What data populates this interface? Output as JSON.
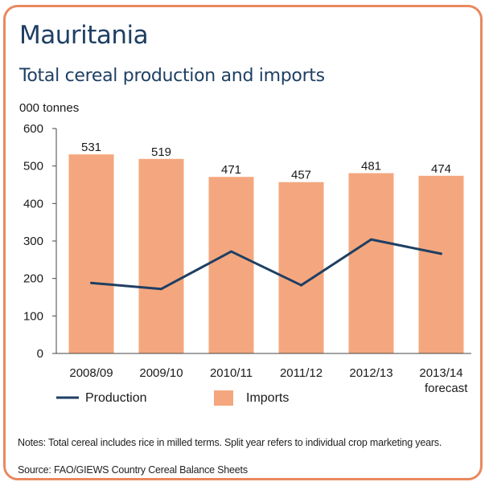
{
  "title": "Mauritania",
  "subtitle": "Total cereal production and imports",
  "unit_label": "000 tonnes",
  "notes": "Notes: Total cereal includes rice in milled terms. Split year refers to individual crop marketing years.",
  "source": "Source: FAO/GIEWS Country Cereal Balance Sheets",
  "forecast_label": "forecast",
  "colors": {
    "imports": "#f4a77e",
    "production": "#1f3f63",
    "border": "#e9895f"
  },
  "chart_data": {
    "type": "bar",
    "categories": [
      "2008/09",
      "2009/10",
      "2010/11",
      "2011/12",
      "2012/13",
      "2013/14"
    ],
    "series": [
      {
        "name": "Imports",
        "type": "bar",
        "values": [
          531,
          519,
          471,
          457,
          481,
          474
        ]
      },
      {
        "name": "Production",
        "type": "line",
        "values": [
          188,
          172,
          272,
          182,
          304,
          266
        ]
      }
    ],
    "data_labels": [
      "531",
      "519",
      "471",
      "457",
      "481",
      "474"
    ],
    "ylim": [
      0,
      600
    ],
    "yticks": [
      0,
      100,
      200,
      300,
      400,
      500,
      600
    ],
    "legend": {
      "position": "bottom",
      "entries": [
        "Production",
        "Imports"
      ]
    },
    "grid": false
  }
}
